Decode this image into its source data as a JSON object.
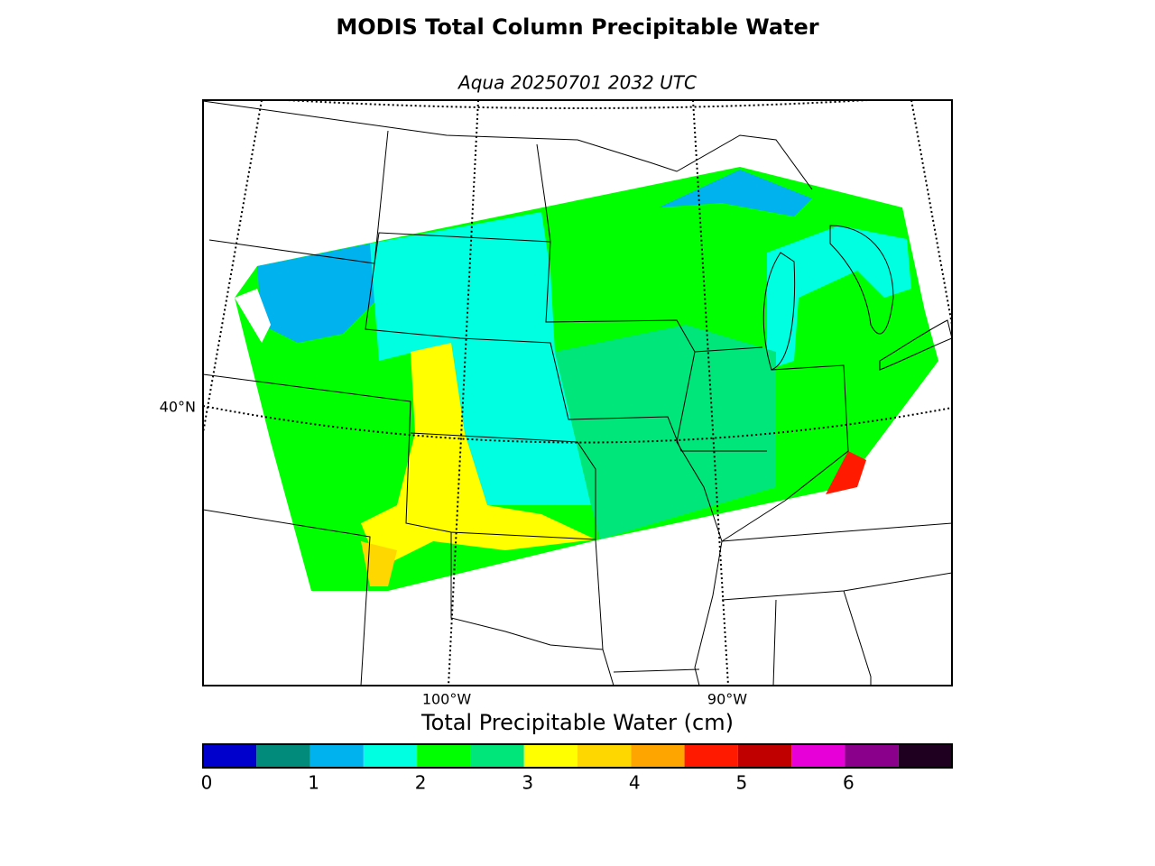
{
  "map": {
    "title": "MODIS Total Column Precipitable Water",
    "subtitle": "Aqua 20250701 2032 UTC",
    "lat_labels": [
      "40°N"
    ],
    "lon_labels": [
      "100°W",
      "90°W"
    ],
    "colorbar": {
      "label": "Total Precipitable Water (cm)",
      "boundaries": [
        0,
        0.5,
        1,
        1.5,
        2,
        2.5,
        3,
        3.5,
        4,
        4.5,
        5,
        5.5,
        6,
        6.5,
        7
      ],
      "colors": [
        "#0000cd",
        "#008b7a",
        "#00b2ee",
        "#00ffe0",
        "#00ff00",
        "#00e67a",
        "#ffff00",
        "#ffd700",
        "#ffa500",
        "#ff1a00",
        "#c00000",
        "#e800d8",
        "#8b008b",
        "#200020"
      ],
      "ticks": [
        0,
        1,
        2,
        3,
        4,
        5,
        6
      ],
      "lim": [
        0,
        7
      ]
    }
  }
}
